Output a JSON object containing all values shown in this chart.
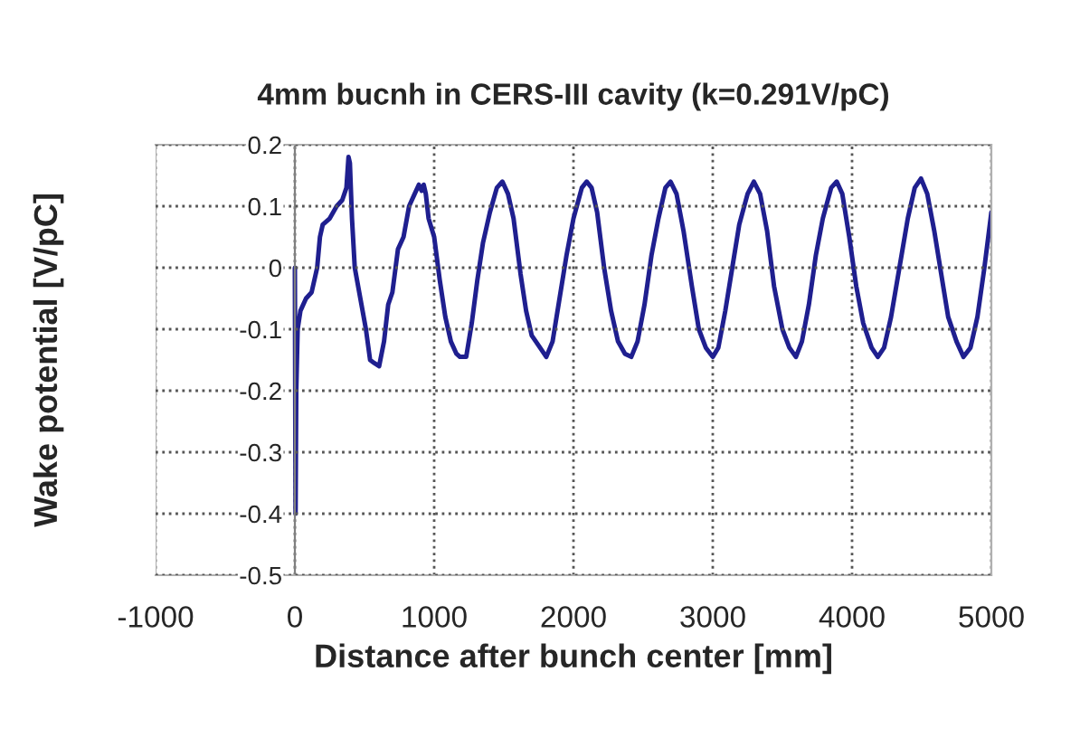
{
  "chart_data": {
    "type": "line",
    "title": "4mm bucnh in CERS-III cavity (k=0.291V/pC)",
    "xlabel": "Distance after bunch center [mm]",
    "ylabel": "Wake potential [V/pC]",
    "series": [
      {
        "color": "#1f1f8f",
        "x": [
          0,
          5,
          10,
          20,
          40,
          80,
          120,
          160,
          180,
          200,
          250,
          300,
          340,
          370,
          385,
          395,
          410,
          430,
          470,
          510,
          540,
          570,
          605,
          640,
          670,
          700,
          740,
          780,
          820,
          860,
          890,
          910,
          925,
          940,
          960,
          1000,
          1040,
          1080,
          1120,
          1160,
          1185,
          1230,
          1270,
          1310,
          1350,
          1400,
          1450,
          1490,
          1530,
          1570,
          1620,
          1660,
          1700,
          1760,
          1805,
          1850,
          1900,
          1950,
          2000,
          2060,
          2095,
          2130,
          2170,
          2220,
          2270,
          2320,
          2370,
          2415,
          2460,
          2510,
          2560,
          2610,
          2660,
          2697,
          2740,
          2790,
          2850,
          2900,
          2950,
          3000,
          3040,
          3090,
          3140,
          3190,
          3250,
          3295,
          3340,
          3390,
          3440,
          3500,
          3550,
          3597,
          3640,
          3690,
          3740,
          3790,
          3850,
          3890,
          3930,
          3980,
          4030,
          4080,
          4140,
          4185,
          4230,
          4280,
          4340,
          4400,
          4450,
          4495,
          4540,
          4590,
          4640,
          4690,
          4750,
          4800,
          4850,
          4900,
          4950,
          5000
        ],
        "values": [
          0,
          -0.4,
          -0.2,
          -0.1,
          -0.07,
          -0.05,
          -0.04,
          0.0,
          0.05,
          0.07,
          0.08,
          0.1,
          0.11,
          0.13,
          0.18,
          0.17,
          0.08,
          0.0,
          -0.05,
          -0.1,
          -0.15,
          -0.155,
          -0.16,
          -0.12,
          -0.06,
          -0.04,
          0.03,
          0.05,
          0.1,
          0.12,
          0.135,
          0.125,
          0.135,
          0.12,
          0.08,
          0.05,
          -0.02,
          -0.08,
          -0.12,
          -0.14,
          -0.145,
          -0.145,
          -0.09,
          -0.02,
          0.04,
          0.09,
          0.13,
          0.14,
          0.12,
          0.08,
          -0.01,
          -0.07,
          -0.11,
          -0.13,
          -0.145,
          -0.12,
          -0.05,
          0.02,
          0.08,
          0.13,
          0.14,
          0.13,
          0.09,
          0.0,
          -0.07,
          -0.12,
          -0.14,
          -0.145,
          -0.12,
          -0.06,
          0.02,
          0.08,
          0.13,
          0.14,
          0.12,
          0.06,
          -0.03,
          -0.1,
          -0.13,
          -0.145,
          -0.13,
          -0.07,
          0.0,
          0.07,
          0.12,
          0.14,
          0.12,
          0.06,
          -0.03,
          -0.1,
          -0.13,
          -0.145,
          -0.12,
          -0.06,
          0.02,
          0.08,
          0.13,
          0.14,
          0.12,
          0.05,
          -0.03,
          -0.09,
          -0.13,
          -0.145,
          -0.13,
          -0.08,
          0.0,
          0.08,
          0.13,
          0.145,
          0.12,
          0.06,
          -0.01,
          -0.08,
          -0.12,
          -0.145,
          -0.13,
          -0.08,
          0.0,
          0.09
        ]
      }
    ],
    "xlim": [
      -1000,
      5000
    ],
    "xticks": [
      -1000,
      0,
      1000,
      2000,
      3000,
      4000,
      5000
    ],
    "ylim": [
      -0.5,
      0.2
    ],
    "yticks": [
      -0.5,
      -0.4,
      -0.3,
      -0.2,
      -0.1,
      0,
      0.1,
      0.2
    ],
    "grid": true,
    "legend": false,
    "marker": "none",
    "line_style": "solid"
  }
}
